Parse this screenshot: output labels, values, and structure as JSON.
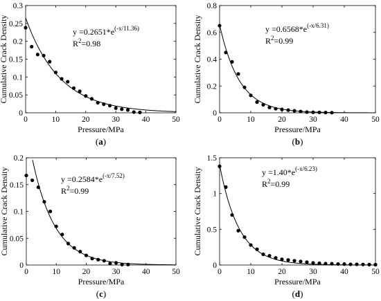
{
  "chart_data": [
    {
      "type": "scatter",
      "panel_label": "a",
      "xlabel": "Pressure/MPa",
      "ylabel": "Cumulative Crack Density",
      "xlim": [
        0,
        50
      ],
      "ylim": [
        0,
        0.3
      ],
      "xticks": [
        "0",
        "10",
        "20",
        "30",
        "40",
        "50"
      ],
      "yticks": [
        "0",
        "0.05",
        "0.1",
        "0.15",
        "0.2",
        "0.25",
        "0.3"
      ],
      "yticks_values": [
        0,
        0.05,
        0.1,
        0.15,
        0.2,
        0.25,
        0.3
      ],
      "equation": {
        "prefix": "y =0.2651*e",
        "exponent": "(-x/11.36)"
      },
      "r2": {
        "prefix": "R",
        "sup": "2",
        "value": "=0.98"
      },
      "fit": {
        "a": 0.2651,
        "t": 11.36
      },
      "x": [
        0,
        2,
        4,
        6,
        8,
        10,
        12,
        14,
        16,
        18,
        20,
        22,
        24,
        26,
        28,
        30,
        32,
        34,
        36,
        38
      ],
      "y": [
        0.238,
        0.185,
        0.163,
        0.16,
        0.143,
        0.113,
        0.095,
        0.087,
        0.069,
        0.06,
        0.047,
        0.039,
        0.028,
        0.024,
        0.02,
        0.013,
        0.01,
        0.008,
        0.002,
        0.001
      ]
    },
    {
      "type": "scatter",
      "panel_label": "b",
      "xlabel": "Pressure/MPa",
      "ylabel": "Cumulative Crack Density",
      "xlim": [
        0,
        50
      ],
      "ylim": [
        0,
        0.8
      ],
      "xticks": [
        "0",
        "10",
        "20",
        "30",
        "40",
        "50"
      ],
      "yticks": [
        "0",
        "0.2",
        "0.4",
        "0.6",
        "0.8"
      ],
      "yticks_values": [
        0,
        0.2,
        0.4,
        0.6,
        0.8
      ],
      "equation": {
        "prefix": "y =0.6568*e",
        "exponent": "(-x/6.31)"
      },
      "r2": {
        "prefix": "R",
        "sup": "2",
        "value": "=0.99"
      },
      "fit": {
        "a": 0.6568,
        "t": 6.31
      },
      "x": [
        0,
        2,
        4,
        6,
        8,
        10,
        12,
        14,
        16,
        18,
        20,
        22,
        24,
        26,
        28,
        30,
        32,
        34,
        36
      ],
      "y": [
        0.65,
        0.45,
        0.38,
        0.29,
        0.19,
        0.13,
        0.08,
        0.06,
        0.04,
        0.03,
        0.025,
        0.02,
        0.015,
        0.01,
        0.005,
        0.004,
        0.003,
        0.002,
        0.001
      ]
    },
    {
      "type": "scatter",
      "panel_label": "c",
      "xlabel": "Pressure/MPa",
      "ylabel": "Cumulative Crack Density",
      "xlim": [
        0,
        50
      ],
      "ylim": [
        0,
        0.2
      ],
      "xticks": [
        "0",
        "10",
        "20",
        "30",
        "40",
        "50"
      ],
      "yticks": [
        "0",
        "0.05",
        "0.1",
        "0.15",
        "0.2"
      ],
      "yticks_values": [
        0,
        0.05,
        0.1,
        0.15,
        0.2
      ],
      "equation": {
        "prefix": "y =0.2584*e",
        "exponent": "(-x/7.52)"
      },
      "r2": {
        "prefix": "R",
        "sup": "2",
        "value": "=0.99"
      },
      "fit": {
        "a": 0.2584,
        "t": 7.52
      },
      "x": [
        0,
        2,
        4,
        6,
        8,
        10,
        12,
        14,
        16,
        18,
        20,
        22,
        24,
        26,
        28,
        30,
        32,
        34
      ],
      "y": [
        0.167,
        0.158,
        0.145,
        0.118,
        0.1,
        0.072,
        0.057,
        0.04,
        0.032,
        0.025,
        0.018,
        0.012,
        0.01,
        0.008,
        0.003,
        0.004,
        0.001,
        0.001
      ]
    },
    {
      "type": "scatter",
      "panel_label": "d",
      "xlabel": "Pressure/MPa",
      "ylabel": "Cumulative Crack Density",
      "xlim": [
        0,
        50
      ],
      "ylim": [
        0,
        1.5
      ],
      "xticks": [
        "0",
        "10",
        "20",
        "30",
        "40",
        "50"
      ],
      "yticks": [
        "0",
        "0.5",
        "1",
        "1.5"
      ],
      "yticks_values": [
        0,
        0.5,
        1,
        1.5
      ],
      "equation": {
        "prefix": "y =1.40*e",
        "exponent": "(-x/6.23)"
      },
      "r2": {
        "prefix": "R",
        "sup": "2",
        "value": "=0.99"
      },
      "fit": {
        "a": 1.4,
        "t": 6.23
      },
      "x": [
        0,
        2,
        4,
        6,
        8,
        10,
        12,
        14,
        16,
        18,
        20,
        22,
        24,
        26,
        28,
        30,
        32,
        34,
        36,
        38,
        40,
        42,
        44,
        46,
        48,
        50
      ],
      "y": [
        1.38,
        1.09,
        0.7,
        0.48,
        0.39,
        0.28,
        0.22,
        0.15,
        0.13,
        0.1,
        0.08,
        0.07,
        0.06,
        0.05,
        0.04,
        0.03,
        0.025,
        0.02,
        0.018,
        0.015,
        0.013,
        0.01,
        0.01,
        0.008,
        0.006,
        0.005
      ]
    }
  ]
}
